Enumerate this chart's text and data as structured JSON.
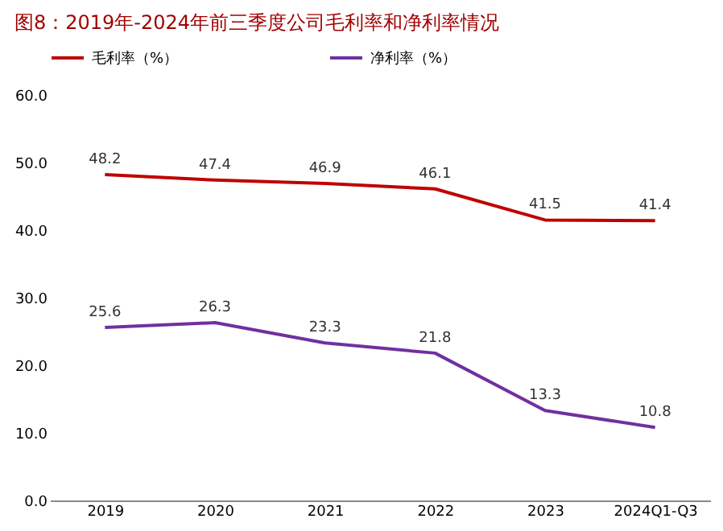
{
  "chart_data": {
    "type": "line",
    "title": "图8：2019年-2024年前三季度公司毛利率和净利率情况",
    "categories": [
      "2019",
      "2020",
      "2021",
      "2022",
      "2023",
      "2024Q1-Q3"
    ],
    "series": [
      {
        "name": "毛利率（%）",
        "color": "#c00000",
        "values": [
          48.2,
          47.4,
          46.9,
          46.1,
          41.5,
          41.4
        ]
      },
      {
        "name": "净利率（%）",
        "color": "#7030a0",
        "values": [
          25.6,
          26.3,
          23.3,
          21.8,
          13.3,
          10.8
        ]
      }
    ],
    "ylim": [
      0,
      60
    ],
    "yticks": [
      {
        "value": 0,
        "label": "0.0"
      },
      {
        "value": 10,
        "label": "10.0"
      },
      {
        "value": 20,
        "label": "20.0"
      },
      {
        "value": 30,
        "label": "30.0"
      },
      {
        "value": 40,
        "label": "40.0"
      },
      {
        "value": 50,
        "label": "50.0"
      },
      {
        "value": 60,
        "label": "60.0"
      }
    ],
    "grid": false,
    "legend": "top",
    "data_labels": true,
    "marker": "none",
    "line_style": "solid"
  }
}
